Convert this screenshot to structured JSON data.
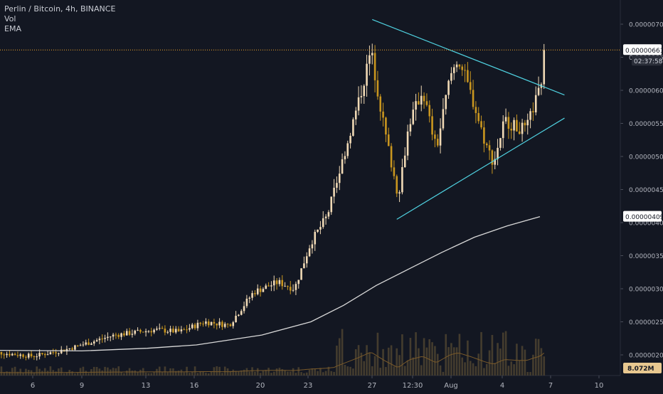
{
  "header": {
    "symbol_line": "Perlin / Bitcoin, 4h, BINANCE",
    "volume_label": "Vol",
    "ema_label": "EMA"
  },
  "colors": {
    "background": "#131722",
    "candle_up": "#f0d9b5",
    "candle_down": "#c9961f",
    "triangle": "#4fd1e0",
    "ema": "#d8d8d8",
    "price_line": "#f4a72a",
    "price_label_bg": "#ffffff",
    "volume_bar": "#4a4030",
    "volume_ma": "#7a5a2a"
  },
  "chart_data": {
    "type": "candlestick",
    "title": "Perlin / Bitcoin, 4h, BINANCE",
    "x_ticks": [
      "6",
      "9",
      "13",
      "16",
      "20",
      "23",
      "27",
      "12:30",
      "Aug",
      "4",
      "7",
      "10"
    ],
    "y_ticks": [
      "0.00000700",
      "0.00000650",
      "0.00000600",
      "0.00000550",
      "0.00000500",
      "0.00000450",
      "0.00000400",
      "0.00000350",
      "0.00000300",
      "0.00000250",
      "0.00000200"
    ],
    "ylim": [
      1.95e-06,
      7.2e-06
    ],
    "current_price": "0.00000661",
    "countdown": "02:37:58",
    "ema_value": "0.00000409",
    "volume_value": "8.072M",
    "triangle_lines": {
      "upper": [
        {
          "x": "Jul 26 18:00",
          "y": 7.07e-06
        },
        {
          "x": "Aug 7 12:00",
          "y": 5.93e-06
        }
      ],
      "lower": [
        {
          "x": "Jul 28 06:00",
          "y": 4.05e-06
        },
        {
          "x": "Aug 7 12:00",
          "y": 5.58e-06
        }
      ]
    },
    "price_path": [
      {
        "x": "Jul 3 06:00",
        "y": 2.05e-06
      },
      {
        "x": "Jul 6 00:00",
        "y": 1.98e-06
      },
      {
        "x": "Jul 8 00:00",
        "y": 2.08e-06
      },
      {
        "x": "Jul 11 00:00",
        "y": 2.3e-06
      },
      {
        "x": "Jul 13 12:00",
        "y": 2.38e-06
      },
      {
        "x": "Jul 15 00:00",
        "y": 2.35e-06
      },
      {
        "x": "Jul 16 12:00",
        "y": 2.5e-06
      },
      {
        "x": "Jul 18 00:00",
        "y": 2.45e-06
      },
      {
        "x": "Jul 19 12:00",
        "y": 2.95e-06
      },
      {
        "x": "Jul 21 00:00",
        "y": 3.1e-06
      },
      {
        "x": "Jul 22 00:00",
        "y": 3e-06
      },
      {
        "x": "Jul 23 00:00",
        "y": 3.7e-06
      },
      {
        "x": "Jul 24 00:00",
        "y": 4.1e-06
      },
      {
        "x": "Jul 25 00:00",
        "y": 5e-06
      },
      {
        "x": "Jul 26 00:00",
        "y": 5.9e-06
      },
      {
        "x": "Jul 26 16:00",
        "y": 6.6e-06
      },
      {
        "x": "Jul 27 12:00",
        "y": 5.4e-06
      },
      {
        "x": "Jul 28 08:00",
        "y": 4.4e-06
      },
      {
        "x": "Jul 29 00:00",
        "y": 5.5e-06
      },
      {
        "x": "Jul 29 20:00",
        "y": 6e-06
      },
      {
        "x": "Jul 30 16:00",
        "y": 5.1e-06
      },
      {
        "x": "Jul 31 12:00",
        "y": 6.2e-06
      },
      {
        "x": "Aug 1 00:00",
        "y": 6.5e-06
      },
      {
        "x": "Aug 1 20:00",
        "y": 5.9e-06
      },
      {
        "x": "Aug 2 16:00",
        "y": 5.2e-06
      },
      {
        "x": "Aug 3 04:00",
        "y": 4.9e-06
      },
      {
        "x": "Aug 3 20:00",
        "y": 5.55e-06
      },
      {
        "x": "Aug 4 12:00",
        "y": 5.45e-06
      },
      {
        "x": "Aug 5 04:00",
        "y": 5.4e-06
      },
      {
        "x": "Aug 5 16:00",
        "y": 5.8e-06
      },
      {
        "x": "Aug 6 00:00",
        "y": 6e-06
      },
      {
        "x": "Aug 6 08:00",
        "y": 6.61e-06
      }
    ],
    "ema_path": [
      {
        "x": "Jul 3 06:00",
        "y": 2.07e-06
      },
      {
        "x": "Jul 9 00:00",
        "y": 2.06e-06
      },
      {
        "x": "Jul 13 00:00",
        "y": 2.1e-06
      },
      {
        "x": "Jul 16 00:00",
        "y": 2.15e-06
      },
      {
        "x": "Jul 20 00:00",
        "y": 2.3e-06
      },
      {
        "x": "Jul 23 00:00",
        "y": 2.5e-06
      },
      {
        "x": "Jul 25 00:00",
        "y": 2.75e-06
      },
      {
        "x": "Jul 27 00:00",
        "y": 3.05e-06
      },
      {
        "x": "Jul 29 00:00",
        "y": 3.3e-06
      },
      {
        "x": "Jul 31 00:00",
        "y": 3.55e-06
      },
      {
        "x": "Aug 2 00:00",
        "y": 3.78e-06
      },
      {
        "x": "Aug 4 00:00",
        "y": 3.95e-06
      },
      {
        "x": "Aug 6 00:00",
        "y": 4.09e-06
      }
    ]
  }
}
